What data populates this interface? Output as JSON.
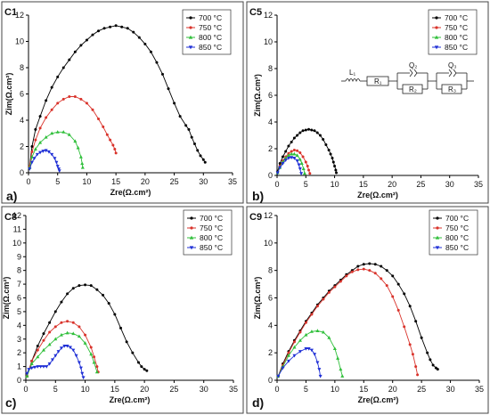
{
  "figure": {
    "panel_letters": [
      "a)",
      "b)",
      "c)",
      "d)"
    ]
  },
  "chart_data": [
    {
      "type": "line",
      "name": "C1",
      "xlabel": "Zre(Ω.cm²)",
      "ylabel": "Zim(Ω.cm²)",
      "xlim": [
        0,
        35
      ],
      "ylim": [
        0,
        12
      ],
      "xticks": [
        0,
        5,
        10,
        15,
        20,
        25,
        30,
        35
      ],
      "yticks": [
        0,
        2,
        4,
        6,
        8,
        10,
        12
      ],
      "legend_position": "top-right",
      "series": [
        {
          "name": "700 °C",
          "color": "#000000",
          "marker": "circle",
          "x": [
            0.2,
            0.6,
            1.2,
            2.0,
            3.0,
            4.0,
            5.0,
            6.0,
            7.0,
            8.0,
            9.0,
            10.0,
            11.0,
            12.0,
            13.0,
            14.0,
            15.0,
            16.0,
            17.0,
            18.0,
            19.0,
            20.0,
            21.0,
            22.0,
            23.0,
            24.0,
            25.0,
            26.0,
            27.0,
            27.5,
            28.0,
            28.5,
            29.0,
            29.5,
            30.0,
            30.3
          ],
          "y": [
            0.5,
            2.0,
            3.3,
            4.3,
            5.5,
            6.5,
            7.3,
            8.0,
            8.6,
            9.2,
            9.7,
            10.1,
            10.5,
            10.8,
            11.0,
            11.1,
            11.2,
            11.1,
            11.0,
            10.7,
            10.3,
            9.8,
            9.2,
            8.4,
            7.5,
            6.4,
            5.3,
            4.3,
            3.6,
            3.3,
            2.7,
            2.2,
            1.7,
            1.3,
            1.0,
            0.8
          ]
        },
        {
          "name": "750 °C",
          "color": "#d9332b",
          "marker": "circle",
          "x": [
            0.2,
            0.6,
            1.2,
            2.0,
            3.0,
            4.0,
            5.0,
            6.0,
            7.0,
            8.0,
            9.0,
            10.0,
            11.0,
            12.0,
            12.8,
            13.5,
            14.0,
            14.5,
            14.8,
            15.0
          ],
          "y": [
            0.5,
            1.6,
            2.5,
            3.4,
            4.2,
            4.8,
            5.3,
            5.6,
            5.8,
            5.8,
            5.6,
            5.3,
            4.8,
            4.1,
            3.5,
            2.9,
            2.5,
            2.1,
            1.8,
            1.5
          ]
        },
        {
          "name": "800 °C",
          "color": "#2fbf3a",
          "marker": "triangle-up",
          "x": [
            0.2,
            0.6,
            1.2,
            2.0,
            3.0,
            4.0,
            5.0,
            6.0,
            7.0,
            8.0,
            8.5,
            9.0,
            9.2,
            9.3
          ],
          "y": [
            0.4,
            1.2,
            1.8,
            2.3,
            2.7,
            3.0,
            3.1,
            3.1,
            2.9,
            2.4,
            1.9,
            1.2,
            0.7,
            0.4
          ]
        },
        {
          "name": "850 °C",
          "color": "#1f2fd6",
          "marker": "triangle-down",
          "x": [
            0.2,
            0.6,
            1.0,
            1.5,
            2.0,
            2.5,
            3.0,
            3.5,
            4.0,
            4.5,
            4.8,
            5.0,
            5.2,
            5.3
          ],
          "y": [
            0.3,
            0.8,
            1.1,
            1.4,
            1.55,
            1.65,
            1.7,
            1.6,
            1.4,
            1.1,
            0.8,
            0.5,
            0.3,
            0.15
          ]
        }
      ]
    },
    {
      "type": "line",
      "name": "C5",
      "xlabel": "Zre(Ω.cm²)",
      "ylabel": "Zim(Ω.cm²)",
      "xlim": [
        0,
        35
      ],
      "ylim": [
        0,
        12
      ],
      "xticks": [
        0,
        5,
        10,
        15,
        20,
        25,
        30,
        35
      ],
      "yticks": [
        0,
        2,
        4,
        6,
        8,
        10,
        12
      ],
      "legend_position": "top-right",
      "circuit_labels": [
        "L₁",
        "R₁",
        "Q₂",
        "R₂",
        "Q₃",
        "R₃"
      ],
      "series": [
        {
          "name": "700 °C",
          "color": "#000000",
          "marker": "circle",
          "x": [
            0.1,
            0.5,
            1.0,
            1.5,
            2.0,
            2.5,
            3.0,
            3.5,
            4.0,
            4.5,
            5.0,
            5.5,
            6.0,
            6.5,
            7.0,
            7.5,
            8.0,
            8.5,
            9.0,
            9.3,
            9.6,
            9.8,
            10.0,
            10.2,
            10.3
          ],
          "y": [
            0.3,
            0.9,
            1.4,
            1.8,
            2.2,
            2.5,
            2.8,
            3.0,
            3.2,
            3.35,
            3.4,
            3.45,
            3.4,
            3.35,
            3.2,
            3.0,
            2.7,
            2.3,
            1.9,
            1.6,
            1.3,
            1.0,
            0.7,
            0.4,
            0.2
          ]
        },
        {
          "name": "750 °C",
          "color": "#d9332b",
          "marker": "circle",
          "x": [
            0.1,
            0.5,
            1.0,
            1.5,
            2.0,
            2.5,
            3.0,
            3.5,
            4.0,
            4.5,
            5.0,
            5.3,
            5.5,
            5.7
          ],
          "y": [
            0.2,
            0.7,
            1.1,
            1.4,
            1.65,
            1.8,
            1.9,
            1.85,
            1.7,
            1.4,
            1.0,
            0.7,
            0.4,
            0.15
          ]
        },
        {
          "name": "800 °C",
          "color": "#2fbf3a",
          "marker": "triangle-up",
          "x": [
            0.1,
            0.5,
            1.0,
            1.5,
            2.0,
            2.5,
            3.0,
            3.5,
            4.0,
            4.3,
            4.6,
            4.8
          ],
          "y": [
            0.2,
            0.6,
            1.0,
            1.3,
            1.5,
            1.6,
            1.6,
            1.5,
            1.2,
            0.9,
            0.5,
            0.15
          ]
        },
        {
          "name": "850 °C",
          "color": "#1f2fd6",
          "marker": "triangle-down",
          "x": [
            0.1,
            0.5,
            1.0,
            1.5,
            2.0,
            2.5,
            3.0,
            3.5,
            3.8,
            4.0,
            4.2
          ],
          "y": [
            0.2,
            0.6,
            0.9,
            1.15,
            1.3,
            1.35,
            1.3,
            1.1,
            0.8,
            0.5,
            0.15
          ]
        }
      ]
    },
    {
      "type": "line",
      "name": "C8",
      "xlabel": "Zre(Ω.cm²)",
      "ylabel": "Zim(Ω.cm²)",
      "xlim": [
        0,
        35
      ],
      "ylim": [
        0,
        12
      ],
      "xticks": [
        0,
        5,
        10,
        15,
        20,
        25,
        30,
        35
      ],
      "yticks": [
        0,
        1,
        2,
        3,
        4,
        5,
        6,
        7,
        8,
        9,
        10,
        11,
        12
      ],
      "legend_position": "top-right",
      "series": [
        {
          "name": "700 °C",
          "color": "#000000",
          "marker": "circle",
          "x": [
            0.2,
            1.0,
            2.0,
            3.0,
            4.0,
            5.0,
            6.0,
            7.0,
            8.0,
            9.0,
            10.0,
            11.0,
            12.0,
            13.0,
            14.0,
            15.0,
            16.0,
            17.0,
            18.0,
            19.0,
            19.5,
            20.0,
            20.4
          ],
          "y": [
            0.3,
            1.4,
            2.5,
            3.4,
            4.2,
            5.0,
            5.7,
            6.3,
            6.7,
            6.9,
            6.95,
            6.9,
            6.6,
            6.2,
            5.6,
            4.8,
            3.8,
            2.8,
            2.0,
            1.3,
            1.0,
            0.8,
            0.7
          ]
        },
        {
          "name": "750 °C",
          "color": "#d9332b",
          "marker": "circle",
          "x": [
            0.2,
            1.0,
            2.0,
            3.0,
            4.0,
            5.0,
            6.0,
            7.0,
            8.0,
            9.0,
            10.0,
            11.0,
            11.5,
            12.0,
            12.2
          ],
          "y": [
            0.3,
            1.4,
            2.2,
            2.9,
            3.5,
            3.9,
            4.2,
            4.3,
            4.2,
            3.9,
            3.3,
            2.4,
            1.7,
            1.0,
            0.6
          ]
        },
        {
          "name": "800 °C",
          "color": "#2fbf3a",
          "marker": "triangle-up",
          "x": [
            0.2,
            1.0,
            2.0,
            3.0,
            4.0,
            5.0,
            6.0,
            7.0,
            8.0,
            9.0,
            10.0,
            11.0,
            11.5,
            12.0
          ],
          "y": [
            0.3,
            1.2,
            1.7,
            2.2,
            2.6,
            3.0,
            3.3,
            3.45,
            3.4,
            3.2,
            2.7,
            1.9,
            1.3,
            0.6
          ]
        },
        {
          "name": "850 °C",
          "color": "#1f2fd6",
          "marker": "triangle-down",
          "x": [
            0.2,
            0.5,
            1.0,
            1.5,
            2.0,
            2.5,
            3.0,
            3.5,
            4.0,
            4.5,
            5.0,
            5.5,
            6.0,
            6.5,
            7.0,
            7.5,
            8.0,
            8.5,
            9.0,
            9.3,
            9.5,
            9.7
          ],
          "y": [
            0.5,
            0.8,
            0.9,
            0.95,
            1.0,
            1.0,
            1.0,
            1.0,
            1.2,
            1.5,
            1.8,
            2.1,
            2.35,
            2.5,
            2.5,
            2.4,
            2.2,
            1.8,
            1.3,
            0.9,
            0.5,
            0.2
          ]
        }
      ]
    },
    {
      "type": "line",
      "name": "C9",
      "xlabel": "Zre(Ω.cm²)",
      "ylabel": "Zim(Ω.cm²)",
      "xlim": [
        0,
        35
      ],
      "ylim": [
        0,
        12
      ],
      "xticks": [
        0,
        5,
        10,
        15,
        20,
        25,
        30,
        35
      ],
      "yticks": [
        0,
        2,
        4,
        6,
        8,
        10,
        12
      ],
      "legend_position": "top-right",
      "series": [
        {
          "name": "700 °C",
          "color": "#000000",
          "marker": "circle",
          "x": [
            0.2,
            1.0,
            2.0,
            3.0,
            4.0,
            5.0,
            6.0,
            7.0,
            8.0,
            9.0,
            10.0,
            11.0,
            12.0,
            13.0,
            14.0,
            15.0,
            16.0,
            17.0,
            18.0,
            19.0,
            20.0,
            21.0,
            22.0,
            23.0,
            24.0,
            25.0,
            26.0,
            26.5,
            27.0,
            27.5,
            27.8
          ],
          "y": [
            0.3,
            1.2,
            2.1,
            2.9,
            3.6,
            4.3,
            4.9,
            5.5,
            6.0,
            6.5,
            6.9,
            7.3,
            7.7,
            8.0,
            8.3,
            8.45,
            8.5,
            8.45,
            8.3,
            8.0,
            7.6,
            7.0,
            6.3,
            5.4,
            4.3,
            3.1,
            2.0,
            1.5,
            1.1,
            0.9,
            0.8
          ]
        },
        {
          "name": "750 °C",
          "color": "#d9332b",
          "marker": "circle",
          "x": [
            0.2,
            1.0,
            2.0,
            3.0,
            4.0,
            5.0,
            6.0,
            7.0,
            8.0,
            9.0,
            10.0,
            11.0,
            12.0,
            13.0,
            14.0,
            15.0,
            16.0,
            17.0,
            18.0,
            19.0,
            20.0,
            21.0,
            22.0,
            23.0,
            23.5,
            24.0,
            24.3
          ],
          "y": [
            0.3,
            1.1,
            2.0,
            2.8,
            3.5,
            4.2,
            4.8,
            5.4,
            5.9,
            6.4,
            6.8,
            7.2,
            7.6,
            7.9,
            8.05,
            8.1,
            8.0,
            7.8,
            7.4,
            6.9,
            6.1,
            5.1,
            3.9,
            2.6,
            1.9,
            1.0,
            0.4
          ]
        },
        {
          "name": "800 °C",
          "color": "#2fbf3a",
          "marker": "triangle-up",
          "x": [
            0.2,
            1.0,
            2.0,
            3.0,
            4.0,
            5.0,
            6.0,
            7.0,
            8.0,
            9.0,
            10.0,
            10.5,
            11.0,
            11.3
          ],
          "y": [
            0.3,
            1.0,
            1.8,
            2.4,
            2.9,
            3.3,
            3.55,
            3.6,
            3.5,
            3.1,
            2.3,
            1.6,
            0.8,
            0.3
          ]
        },
        {
          "name": "850 °C",
          "color": "#1f2fd6",
          "marker": "triangle-down",
          "x": [
            0.2,
            1.0,
            2.0,
            3.0,
            4.0,
            5.0,
            5.5,
            6.0,
            6.5,
            7.0,
            7.3,
            7.5
          ],
          "y": [
            0.3,
            0.9,
            1.4,
            1.8,
            2.1,
            2.3,
            2.3,
            2.2,
            1.9,
            1.3,
            0.8,
            0.3
          ]
        }
      ]
    }
  ]
}
